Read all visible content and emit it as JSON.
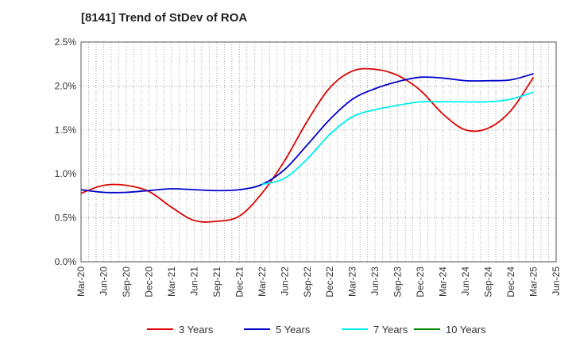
{
  "chart_data": {
    "type": "line",
    "title": "[8141]  Trend of StDev of ROA",
    "xlabel": "",
    "ylabel": "",
    "ylim": [
      0,
      2.5
    ],
    "y_ticks": [
      "0.0%",
      "0.5%",
      "1.0%",
      "1.5%",
      "2.0%",
      "2.5%"
    ],
    "y_tick_values": [
      0,
      0.5,
      1.0,
      1.5,
      2.0,
      2.5
    ],
    "x_ticks": [
      "Mar-20",
      "Jun-20",
      "Sep-20",
      "Dec-20",
      "Mar-21",
      "Jun-21",
      "Sep-21",
      "Dec-21",
      "Mar-22",
      "Jun-22",
      "Sep-22",
      "Dec-22",
      "Mar-23",
      "Jun-23",
      "Sep-23",
      "Dec-23",
      "Mar-24",
      "Jun-24",
      "Sep-24",
      "Dec-24",
      "Mar-25",
      "Jun-25"
    ],
    "grid": true,
    "legend_position": "bottom",
    "series": [
      {
        "name": "3 Years",
        "color": "#dd0000",
        "values": [
          0.78,
          0.87,
          0.87,
          0.8,
          0.62,
          0.47,
          0.46,
          0.52,
          0.78,
          1.15,
          1.6,
          1.98,
          2.17,
          2.19,
          2.12,
          1.95,
          1.68,
          1.5,
          1.52,
          1.72,
          2.1,
          null
        ]
      },
      {
        "name": "5 Years",
        "color": "#0000cc",
        "values": [
          0.82,
          0.79,
          0.79,
          0.81,
          0.83,
          0.82,
          0.81,
          0.82,
          0.88,
          1.05,
          1.33,
          1.62,
          1.85,
          1.97,
          2.05,
          2.1,
          2.09,
          2.06,
          2.06,
          2.07,
          2.14,
          null
        ]
      },
      {
        "name": "7 Years",
        "color": "#00eeee",
        "values": [
          null,
          null,
          null,
          null,
          null,
          null,
          null,
          null,
          0.88,
          0.95,
          1.17,
          1.45,
          1.65,
          1.73,
          1.78,
          1.82,
          1.82,
          1.82,
          1.82,
          1.85,
          1.93,
          null
        ]
      },
      {
        "name": "10 Years",
        "color": "#008800",
        "values": [
          null,
          null,
          null,
          null,
          null,
          null,
          null,
          null,
          null,
          null,
          null,
          null,
          null,
          null,
          null,
          null,
          null,
          null,
          null,
          null,
          null,
          null
        ]
      }
    ]
  }
}
